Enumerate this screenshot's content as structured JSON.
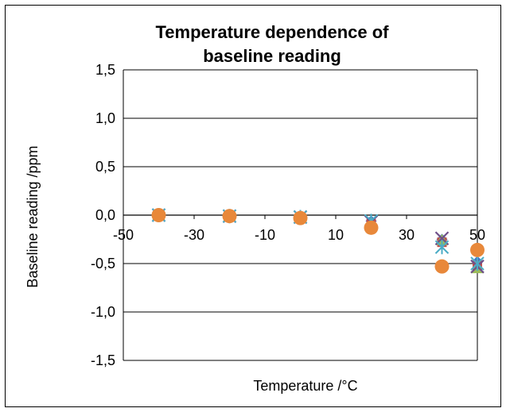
{
  "chart_data": {
    "type": "scatter",
    "title_lines": [
      "Temperature dependence of",
      "baseline reading"
    ],
    "xlabel": "Temperature /°C",
    "ylabel": "Baseline reading /ppm",
    "xlim": [
      -50,
      50
    ],
    "ylim": [
      -1.5,
      1.5
    ],
    "x_ticks": [
      -50,
      -30,
      -10,
      10,
      30,
      50
    ],
    "y_ticks": [
      1.5,
      1.0,
      0.5,
      0.0,
      -0.5,
      -1.0,
      -1.5
    ],
    "x_tick_labels": [
      "-50",
      "-30",
      "-10",
      "10",
      "30",
      "50"
    ],
    "y_tick_labels": [
      "1,5",
      "1,0",
      "0,5",
      "0,0",
      "-0,5",
      "-1,0",
      "-1,5"
    ],
    "grid": "horizontal",
    "legend": "none",
    "series": [
      {
        "marker": "diamond",
        "color": "#4472c4",
        "x": [
          -40,
          -20,
          0,
          20,
          40,
          50
        ],
        "y": [
          0.0,
          -0.01,
          -0.02,
          -0.06,
          -0.25,
          -0.48
        ]
      },
      {
        "marker": "square",
        "color": "#c0504d",
        "x": [
          -40,
          -20,
          0,
          20,
          40,
          50
        ],
        "y": [
          0.0,
          -0.01,
          -0.03,
          -0.09,
          -0.28,
          -0.52
        ]
      },
      {
        "marker": "triangle",
        "color": "#9bbb59",
        "x": [
          -40,
          -20,
          0,
          20,
          40,
          50
        ],
        "y": [
          0.0,
          -0.01,
          -0.02,
          -0.08,
          -0.26,
          -0.55
        ]
      },
      {
        "marker": "x",
        "color": "#6e4f8a",
        "x": [
          -40,
          -20,
          0,
          20,
          40,
          50
        ],
        "y": [
          0.0,
          -0.01,
          -0.02,
          -0.07,
          -0.24,
          -0.53
        ]
      },
      {
        "marker": "star",
        "color": "#4bacc6",
        "x": [
          -40,
          -20,
          0,
          20,
          40,
          50
        ],
        "y": [
          0.0,
          -0.01,
          -0.02,
          -0.06,
          -0.33,
          -0.5
        ]
      },
      {
        "marker": "circle",
        "color": "#e8883a",
        "x": [
          -40,
          -20,
          0,
          20,
          40,
          50
        ],
        "y": [
          0.0,
          -0.01,
          -0.03,
          -0.13,
          -0.53,
          -0.36
        ]
      }
    ]
  }
}
